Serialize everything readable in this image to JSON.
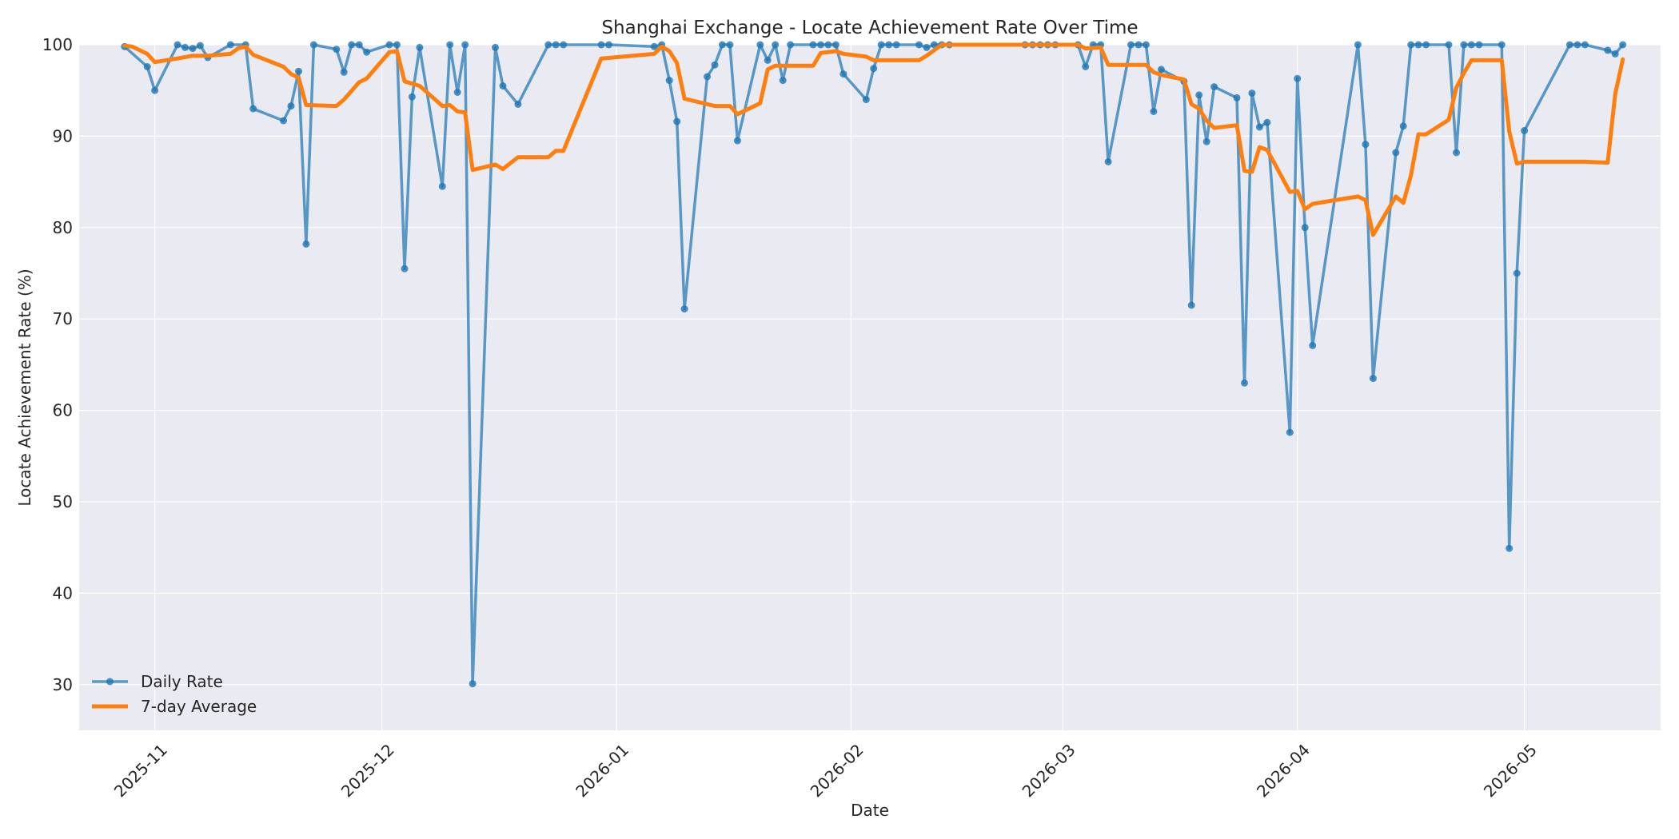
{
  "chart_data": {
    "type": "line",
    "title": "Shanghai Exchange - Locate Achievement Rate Over Time",
    "xlabel": "Date",
    "ylabel": "Locate Achievement Rate (%)",
    "x_ticks": [
      "2025-11",
      "2025-12",
      "2026-01",
      "2026-02",
      "2026-03",
      "2026-04",
      "2026-05"
    ],
    "y_ticks": [
      30,
      40,
      50,
      60,
      70,
      80,
      90,
      100
    ],
    "xlim": [
      "2025-10-22",
      "2026-05-19"
    ],
    "ylim": [
      25,
      100
    ],
    "grid": true,
    "legend_position": "lower-left",
    "series": [
      {
        "name": "Daily Rate",
        "color": "#1f77b4",
        "marker": "circle",
        "points": [
          [
            "2025-10-28",
            99.8
          ],
          [
            "2025-10-31",
            97.6
          ],
          [
            "2025-11-01",
            95.0
          ],
          [
            "2025-11-04",
            100.0
          ],
          [
            "2025-11-05",
            99.7
          ],
          [
            "2025-11-06",
            99.6
          ],
          [
            "2025-11-07",
            99.9
          ],
          [
            "2025-11-08",
            98.6
          ],
          [
            "2025-11-11",
            100.0
          ],
          [
            "2025-11-13",
            100.0
          ],
          [
            "2025-11-14",
            93.0
          ],
          [
            "2025-11-18",
            91.7
          ],
          [
            "2025-11-19",
            93.3
          ],
          [
            "2025-11-20",
            97.1
          ],
          [
            "2025-11-21",
            78.2
          ],
          [
            "2025-11-22",
            100.0
          ],
          [
            "2025-11-25",
            99.5
          ],
          [
            "2025-11-26",
            97.0
          ],
          [
            "2025-11-27",
            100.0
          ],
          [
            "2025-11-28",
            100.0
          ],
          [
            "2025-11-29",
            99.2
          ],
          [
            "2025-12-02",
            100.0
          ],
          [
            "2025-12-03",
            100.0
          ],
          [
            "2025-12-04",
            75.5
          ],
          [
            "2025-12-05",
            94.3
          ],
          [
            "2025-12-06",
            99.7
          ],
          [
            "2025-12-09",
            84.5
          ],
          [
            "2025-12-10",
            100.0
          ],
          [
            "2025-12-11",
            94.8
          ],
          [
            "2025-12-12",
            100.0
          ],
          [
            "2025-12-13",
            30.1
          ],
          [
            "2025-12-16",
            99.7
          ],
          [
            "2025-12-17",
            95.5
          ],
          [
            "2025-12-19",
            93.5
          ],
          [
            "2025-12-23",
            100.0
          ],
          [
            "2025-12-24",
            100.0
          ],
          [
            "2025-12-25",
            100.0
          ],
          [
            "2025-12-30",
            100.0
          ],
          [
            "2025-12-31",
            100.0
          ],
          [
            "2026-01-06",
            99.8
          ],
          [
            "2026-01-07",
            100.0
          ],
          [
            "2026-01-08",
            96.1
          ],
          [
            "2026-01-09",
            91.6
          ],
          [
            "2026-01-10",
            71.1
          ],
          [
            "2026-01-13",
            96.5
          ],
          [
            "2026-01-14",
            97.8
          ],
          [
            "2026-01-15",
            100.0
          ],
          [
            "2026-01-16",
            100.0
          ],
          [
            "2026-01-17",
            89.5
          ],
          [
            "2026-01-20",
            100.0
          ],
          [
            "2026-01-21",
            98.3
          ],
          [
            "2026-01-22",
            100.0
          ],
          [
            "2026-01-23",
            96.1
          ],
          [
            "2026-01-24",
            100.0
          ],
          [
            "2026-01-27",
            100.0
          ],
          [
            "2026-01-28",
            100.0
          ],
          [
            "2026-01-29",
            100.0
          ],
          [
            "2026-01-30",
            100.0
          ],
          [
            "2026-01-31",
            96.8
          ],
          [
            "2026-02-03",
            94.0
          ],
          [
            "2026-02-04",
            97.4
          ],
          [
            "2026-02-05",
            100.0
          ],
          [
            "2026-02-06",
            100.0
          ],
          [
            "2026-02-07",
            100.0
          ],
          [
            "2026-02-10",
            100.0
          ],
          [
            "2026-02-11",
            99.7
          ],
          [
            "2026-02-12",
            100.0
          ],
          [
            "2026-02-13",
            100.0
          ],
          [
            "2026-02-14",
            100.0
          ],
          [
            "2026-02-24",
            100.0
          ],
          [
            "2026-02-25",
            100.0
          ],
          [
            "2026-02-26",
            100.0
          ],
          [
            "2026-02-27",
            100.0
          ],
          [
            "2026-02-28",
            100.0
          ],
          [
            "2026-03-03",
            100.0
          ],
          [
            "2026-03-04",
            97.6
          ],
          [
            "2026-03-05",
            100.0
          ],
          [
            "2026-03-06",
            100.0
          ],
          [
            "2026-03-07",
            87.2
          ],
          [
            "2026-03-10",
            100.0
          ],
          [
            "2026-03-11",
            100.0
          ],
          [
            "2026-03-12",
            100.0
          ],
          [
            "2026-03-13",
            92.7
          ],
          [
            "2026-03-14",
            97.3
          ],
          [
            "2026-03-17",
            96.0
          ],
          [
            "2026-03-18",
            71.5
          ],
          [
            "2026-03-19",
            94.5
          ],
          [
            "2026-03-20",
            89.4
          ],
          [
            "2026-03-21",
            95.4
          ],
          [
            "2026-03-24",
            94.2
          ],
          [
            "2026-03-25",
            63.0
          ],
          [
            "2026-03-26",
            94.7
          ],
          [
            "2026-03-27",
            91.0
          ],
          [
            "2026-03-28",
            91.5
          ],
          [
            "2026-03-31",
            57.6
          ],
          [
            "2026-04-01",
            96.3
          ],
          [
            "2026-04-02",
            80.0
          ],
          [
            "2026-04-03",
            67.1
          ],
          [
            "2026-04-09",
            100.0
          ],
          [
            "2026-04-10",
            89.1
          ],
          [
            "2026-04-11",
            63.5
          ],
          [
            "2026-04-14",
            88.2
          ],
          [
            "2026-04-15",
            91.1
          ],
          [
            "2026-04-16",
            100.0
          ],
          [
            "2026-04-17",
            100.0
          ],
          [
            "2026-04-18",
            100.0
          ],
          [
            "2026-04-21",
            100.0
          ],
          [
            "2026-04-22",
            88.2
          ],
          [
            "2026-04-23",
            100.0
          ],
          [
            "2026-04-24",
            100.0
          ],
          [
            "2026-04-25",
            100.0
          ],
          [
            "2026-04-28",
            100.0
          ],
          [
            "2026-04-29",
            44.9
          ],
          [
            "2026-04-30",
            75.0
          ],
          [
            "2026-05-01",
            90.6
          ],
          [
            "2026-05-07",
            100.0
          ],
          [
            "2026-05-08",
            100.0
          ],
          [
            "2026-05-09",
            100.0
          ],
          [
            "2026-05-12",
            99.4
          ],
          [
            "2026-05-13",
            99.0
          ],
          [
            "2026-05-14",
            100.0
          ]
        ]
      },
      {
        "name": "7-day Average",
        "color": "#ff7f0e",
        "marker": "none",
        "points": [
          [
            "2025-10-28",
            99.9
          ],
          [
            "2025-10-29",
            99.8
          ],
          [
            "2025-10-31",
            99.0
          ],
          [
            "2025-11-01",
            98.1
          ],
          [
            "2025-11-04",
            98.5
          ],
          [
            "2025-11-06",
            98.8
          ],
          [
            "2025-11-08",
            98.8
          ],
          [
            "2025-11-11",
            99.0
          ],
          [
            "2025-11-12",
            99.6
          ],
          [
            "2025-11-13",
            99.8
          ],
          [
            "2025-11-14",
            98.9
          ],
          [
            "2025-11-18",
            97.6
          ],
          [
            "2025-11-19",
            96.8
          ],
          [
            "2025-11-20",
            96.4
          ],
          [
            "2025-11-21",
            93.4
          ],
          [
            "2025-11-25",
            93.3
          ],
          [
            "2025-11-26",
            94.0
          ],
          [
            "2025-11-28",
            95.9
          ],
          [
            "2025-11-29",
            96.3
          ],
          [
            "2025-12-02",
            99.2
          ],
          [
            "2025-12-03",
            99.3
          ],
          [
            "2025-12-04",
            96.0
          ],
          [
            "2025-12-06",
            95.5
          ],
          [
            "2025-12-09",
            93.3
          ],
          [
            "2025-12-10",
            93.4
          ],
          [
            "2025-12-11",
            92.7
          ],
          [
            "2025-12-12",
            92.6
          ],
          [
            "2025-12-13",
            86.3
          ],
          [
            "2025-12-16",
            86.9
          ],
          [
            "2025-12-17",
            86.4
          ],
          [
            "2025-12-19",
            87.7
          ],
          [
            "2025-12-23",
            87.7
          ],
          [
            "2025-12-24",
            88.4
          ],
          [
            "2025-12-25",
            88.4
          ],
          [
            "2025-12-30",
            98.5
          ],
          [
            "2026-01-06",
            99.0
          ],
          [
            "2026-01-07",
            99.8
          ],
          [
            "2026-01-08",
            99.3
          ],
          [
            "2026-01-09",
            98.0
          ],
          [
            "2026-01-10",
            94.1
          ],
          [
            "2026-01-14",
            93.3
          ],
          [
            "2026-01-16",
            93.3
          ],
          [
            "2026-01-17",
            92.4
          ],
          [
            "2026-01-20",
            93.6
          ],
          [
            "2026-01-21",
            97.3
          ],
          [
            "2026-01-22",
            97.7
          ],
          [
            "2026-01-27",
            97.7
          ],
          [
            "2026-01-28",
            99.1
          ],
          [
            "2026-01-30",
            99.3
          ],
          [
            "2026-01-31",
            99.0
          ],
          [
            "2026-02-03",
            98.7
          ],
          [
            "2026-02-04",
            98.3
          ],
          [
            "2026-02-10",
            98.3
          ],
          [
            "2026-02-11",
            98.8
          ],
          [
            "2026-02-13",
            100.0
          ],
          [
            "2026-03-03",
            100.0
          ],
          [
            "2026-03-04",
            99.6
          ],
          [
            "2026-03-06",
            99.7
          ],
          [
            "2026-03-07",
            97.8
          ],
          [
            "2026-03-12",
            97.8
          ],
          [
            "2026-03-13",
            97.0
          ],
          [
            "2026-03-14",
            96.7
          ],
          [
            "2026-03-17",
            96.2
          ],
          [
            "2026-03-18",
            93.5
          ],
          [
            "2026-03-19",
            93.0
          ],
          [
            "2026-03-20",
            91.7
          ],
          [
            "2026-03-21",
            90.9
          ],
          [
            "2026-03-24",
            91.2
          ],
          [
            "2026-03-25",
            86.2
          ],
          [
            "2026-03-26",
            86.1
          ],
          [
            "2026-03-27",
            88.8
          ],
          [
            "2026-03-28",
            88.5
          ],
          [
            "2026-03-31",
            83.9
          ],
          [
            "2026-04-01",
            84.0
          ],
          [
            "2026-04-02",
            82.0
          ],
          [
            "2026-04-03",
            82.6
          ],
          [
            "2026-04-09",
            83.4
          ],
          [
            "2026-04-10",
            83.0
          ],
          [
            "2026-04-11",
            79.2
          ],
          [
            "2026-04-14",
            83.4
          ],
          [
            "2026-04-15",
            82.7
          ],
          [
            "2026-04-16",
            85.7
          ],
          [
            "2026-04-17",
            90.2
          ],
          [
            "2026-04-18",
            90.2
          ],
          [
            "2026-04-21",
            91.8
          ],
          [
            "2026-04-22",
            95.3
          ],
          [
            "2026-04-23",
            96.9
          ],
          [
            "2026-04-24",
            98.3
          ],
          [
            "2026-04-28",
            98.3
          ],
          [
            "2026-04-29",
            90.5
          ],
          [
            "2026-04-30",
            87.0
          ],
          [
            "2026-05-01",
            87.2
          ],
          [
            "2026-05-09",
            87.2
          ],
          [
            "2026-05-12",
            87.1
          ],
          [
            "2026-05-13",
            94.6
          ],
          [
            "2026-05-14",
            98.4
          ]
        ]
      }
    ]
  }
}
